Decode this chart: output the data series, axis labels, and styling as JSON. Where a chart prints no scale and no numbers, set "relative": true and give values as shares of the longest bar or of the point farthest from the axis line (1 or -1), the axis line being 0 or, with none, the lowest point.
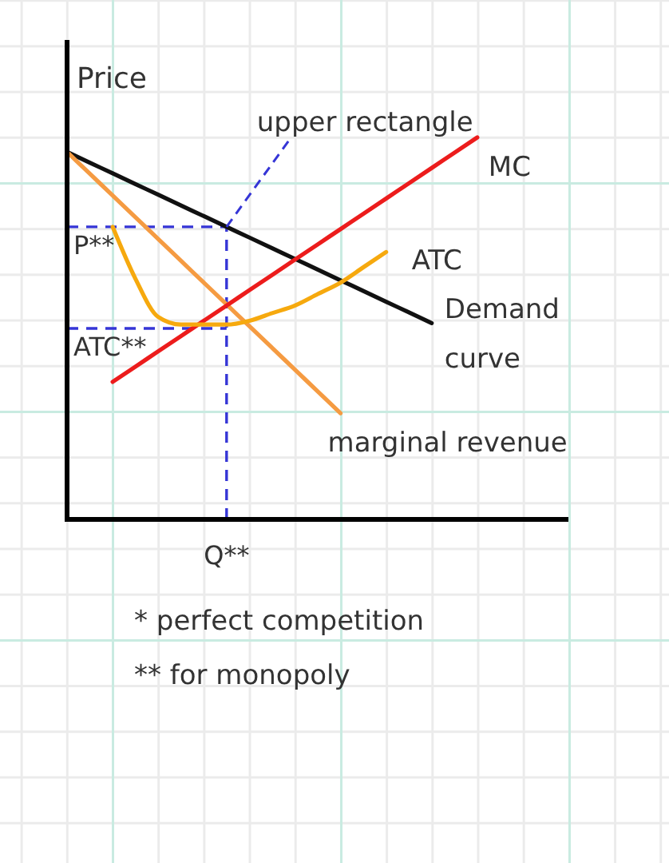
{
  "chart_data": {
    "type": "line",
    "relative": true,
    "ylabel": "Price",
    "categories": [
      null,
      null,
      null,
      null,
      null,
      null,
      null,
      null,
      null,
      null,
      null,
      null,
      null,
      null,
      null,
      null,
      null,
      null,
      null,
      null,
      null,
      null,
      null
    ],
    "series": [
      {
        "name": "Demand curve",
        "color": "#111111",
        "values": [
          0.962,
          0.934,
          0.906,
          0.878,
          0.85,
          0.822,
          0.794,
          0.766,
          0.738,
          0.71,
          0.682,
          0.654,
          0.626,
          0.598,
          0.57,
          0.542,
          0.514,
          null,
          null,
          null,
          null,
          null,
          null
        ]
      },
      {
        "name": "marginal revenue",
        "color": "#f59b42",
        "values": [
          0.962,
          0.905,
          0.848,
          0.791,
          0.734,
          0.677,
          0.62,
          0.563,
          0.506,
          0.449,
          0.392,
          0.335,
          0.278,
          null,
          null,
          null,
          null,
          null,
          null,
          null,
          null,
          null,
          null
        ]
      },
      {
        "name": "MC",
        "color": "#ec1c1c",
        "values": [
          null,
          null,
          0.36,
          0.4,
          0.44,
          0.48,
          0.52,
          0.56,
          0.6,
          0.64,
          0.68,
          0.72,
          0.76,
          0.8,
          0.84,
          0.88,
          0.92,
          0.96,
          1.0,
          null,
          null,
          null,
          null
        ]
      },
      {
        "name": "ATC",
        "color": "#f6a90e",
        "values": [
          null,
          null,
          0.766,
          0.63,
          0.53,
          0.51,
          0.51,
          0.51,
          0.52,
          0.54,
          0.56,
          0.59,
          0.62,
          0.66,
          0.7,
          null,
          null,
          null,
          null,
          null,
          null,
          null,
          null
        ]
      }
    ],
    "ref_lines": [
      {
        "axis": "y",
        "value": 0.766,
        "label": "P**",
        "color": "#3535d6",
        "line_style": "dashed"
      },
      {
        "axis": "y",
        "value": 0.5,
        "label": "ATC**",
        "color": "#3535d6",
        "line_style": "dashed"
      }
    ],
    "annotations": [
      "upper rectangle",
      "Q**",
      "* perfect competition",
      "** for monopoly"
    ]
  }
}
